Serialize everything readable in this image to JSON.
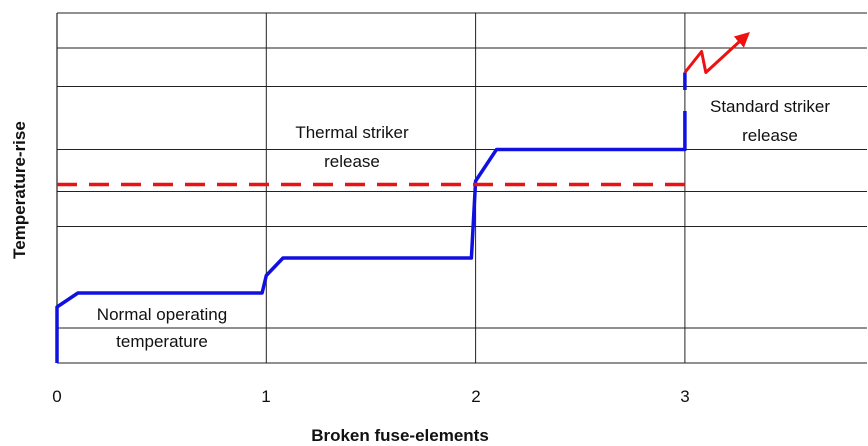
{
  "chart_data": {
    "type": "line",
    "title": "",
    "xlabel": "Broken fuse-elements",
    "ylabel": "Temperature-rise",
    "x_ticks": [
      "0",
      "1",
      "2",
      "3"
    ],
    "xlim": [
      0,
      3.87
    ],
    "grid": true,
    "y_axis_values_shown": false,
    "series": [
      {
        "role": "temperature",
        "color": "#1010e0",
        "points": [
          [
            0,
            0
          ],
          [
            0,
            0.16
          ],
          [
            0.1,
            0.2
          ],
          [
            0.98,
            0.2
          ],
          [
            1.0,
            0.25
          ],
          [
            1.08,
            0.3
          ],
          [
            1.98,
            0.3
          ],
          [
            2.0,
            0.52
          ],
          [
            2.1,
            0.61
          ],
          [
            3.0,
            0.61
          ],
          [
            3.0,
            0.65
          ],
          [
            3.0,
            0.72
          ]
        ],
        "jump": [
          [
            3.0,
            0.78
          ],
          [
            3.0,
            0.83
          ]
        ]
      },
      {
        "role": "thermal threshold",
        "color": "#ee1111",
        "style": "dashed",
        "points": [
          [
            0,
            0.51
          ],
          [
            3.0,
            0.51
          ]
        ]
      },
      {
        "role": "striker",
        "color": "#ee1111",
        "points": [
          [
            3.0,
            0.83
          ],
          [
            3.08,
            0.89
          ],
          [
            3.1,
            0.83
          ],
          [
            3.3,
            0.94
          ]
        ],
        "arrow": true
      }
    ],
    "annotations": {
      "normal_line1": "Normal operating",
      "normal_line2": "temperature",
      "thermal_line1": "Thermal striker",
      "thermal_line2": "release",
      "standard_line1": "Standard striker",
      "standard_line2": "release"
    }
  }
}
